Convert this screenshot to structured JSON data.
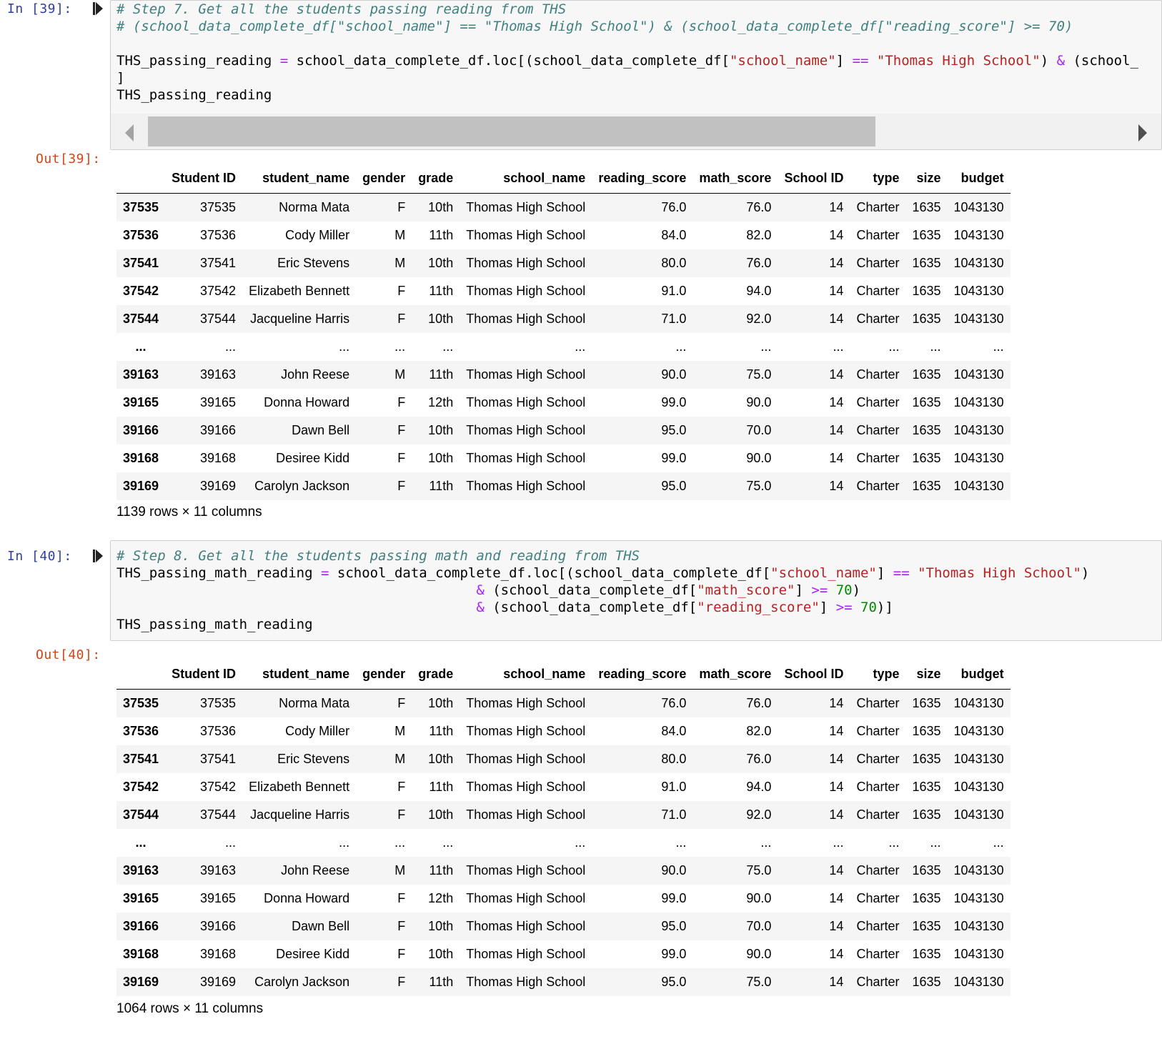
{
  "cells": [
    {
      "in_prompt": "In [39]:",
      "out_prompt": "Out[39]:",
      "code": {
        "comment1": "# Step 7. Get all the students passing reading from THS",
        "comment2": "# (school_data_complete_df[\"school_name\"] == \"Thomas High School\") & (school_data_complete_df[\"reading_score\"] >= 70)",
        "line3_a": "THS_passing_reading ",
        "line3_op": "=",
        "line3_b": " school_data_complete_df.loc[(school_data_complete_df[",
        "line3_str1": "\"school_name\"",
        "line3_c": "] ",
        "line3_eq": "==",
        "line3_d": " ",
        "line3_str2": "\"Thomas High School\"",
        "line3_e": ") ",
        "line3_amp": "&",
        "line3_f": " (school_",
        "line4": "]",
        "line5": "THS_passing_reading"
      },
      "shape": "1139 rows × 11 columns"
    },
    {
      "in_prompt": "In [40]:",
      "out_prompt": "Out[40]:",
      "code": {
        "comment1": "# Step 8. Get all the students passing math and reading from THS",
        "l2_a": "THS_passing_math_reading ",
        "l2_op": "=",
        "l2_b": " school_data_complete_df.loc[(school_data_complete_df[",
        "l2_str1": "\"school_name\"",
        "l2_c": "] ",
        "l2_eq": "==",
        "l2_d": " ",
        "l2_str2": "\"Thomas High School\"",
        "l2_e": ")",
        "l3_indent": "                                            ",
        "l3_amp": "&",
        "l3_a": " (school_data_complete_df[",
        "l3_str": "\"math_score\"",
        "l3_b": "] ",
        "l3_ge": ">=",
        "l3_c": " ",
        "l3_num": "70",
        "l3_d": ")",
        "l4_amp": "&",
        "l4_a": " (school_data_complete_df[",
        "l4_str": "\"reading_score\"",
        "l4_b": "] ",
        "l4_ge": ">=",
        "l4_c": " ",
        "l4_num": "70",
        "l4_d": ")]",
        "l5": "THS_passing_math_reading"
      },
      "shape": "1064 rows × 11 columns"
    }
  ],
  "table": {
    "headers": [
      "",
      "Student ID",
      "student_name",
      "gender",
      "grade",
      "school_name",
      "reading_score",
      "math_score",
      "School ID",
      "type",
      "size",
      "budget"
    ],
    "rows": [
      [
        "37535",
        "37535",
        "Norma Mata",
        "F",
        "10th",
        "Thomas High School",
        "76.0",
        "76.0",
        "14",
        "Charter",
        "1635",
        "1043130"
      ],
      [
        "37536",
        "37536",
        "Cody Miller",
        "M",
        "11th",
        "Thomas High School",
        "84.0",
        "82.0",
        "14",
        "Charter",
        "1635",
        "1043130"
      ],
      [
        "37541",
        "37541",
        "Eric Stevens",
        "M",
        "10th",
        "Thomas High School",
        "80.0",
        "76.0",
        "14",
        "Charter",
        "1635",
        "1043130"
      ],
      [
        "37542",
        "37542",
        "Elizabeth Bennett",
        "F",
        "11th",
        "Thomas High School",
        "91.0",
        "94.0",
        "14",
        "Charter",
        "1635",
        "1043130"
      ],
      [
        "37544",
        "37544",
        "Jacqueline Harris",
        "F",
        "10th",
        "Thomas High School",
        "71.0",
        "92.0",
        "14",
        "Charter",
        "1635",
        "1043130"
      ],
      [
        "...",
        "...",
        "...",
        "...",
        "...",
        "...",
        "...",
        "...",
        "...",
        "...",
        "...",
        "..."
      ],
      [
        "39163",
        "39163",
        "John Reese",
        "M",
        "11th",
        "Thomas High School",
        "90.0",
        "75.0",
        "14",
        "Charter",
        "1635",
        "1043130"
      ],
      [
        "39165",
        "39165",
        "Donna Howard",
        "F",
        "12th",
        "Thomas High School",
        "99.0",
        "90.0",
        "14",
        "Charter",
        "1635",
        "1043130"
      ],
      [
        "39166",
        "39166",
        "Dawn Bell",
        "F",
        "10th",
        "Thomas High School",
        "95.0",
        "70.0",
        "14",
        "Charter",
        "1635",
        "1043130"
      ],
      [
        "39168",
        "39168",
        "Desiree Kidd",
        "F",
        "10th",
        "Thomas High School",
        "99.0",
        "90.0",
        "14",
        "Charter",
        "1635",
        "1043130"
      ],
      [
        "39169",
        "39169",
        "Carolyn Jackson",
        "F",
        "11th",
        "Thomas High School",
        "95.0",
        "75.0",
        "14",
        "Charter",
        "1635",
        "1043130"
      ]
    ]
  },
  "colors": {
    "in_prompt": "#303f9f",
    "out_prompt": "#d84315",
    "comment": "#408080",
    "string": "#ba2121",
    "operator": "#aa22ff",
    "number": "#008800",
    "cell_bg": "#f7f7f7"
  },
  "icons": {
    "run": "run-cell-icon",
    "scroll_left": "scroll-left-arrow-icon",
    "scroll_right": "scroll-right-arrow-icon"
  }
}
